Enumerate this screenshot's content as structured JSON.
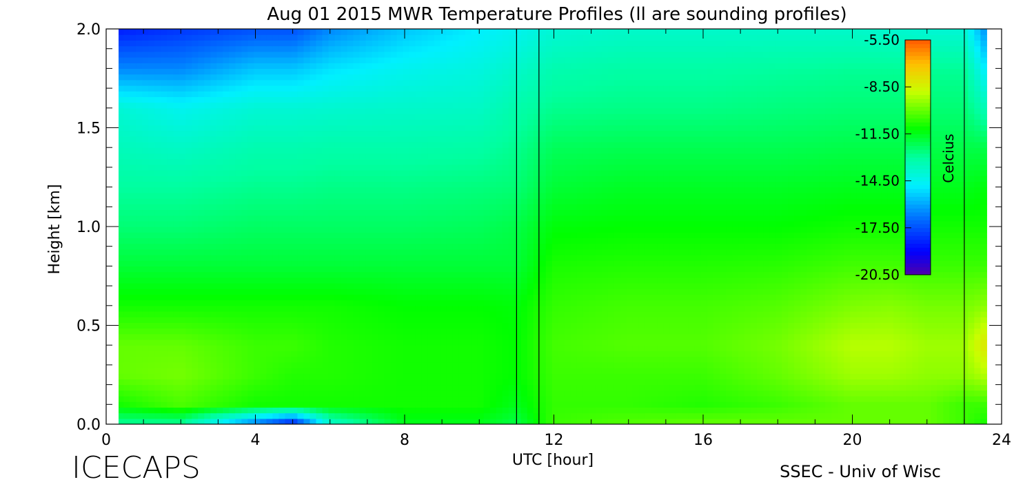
{
  "chart_data": {
    "type": "heatmap",
    "title": "Aug 01 2015 MWR Temperature Profiles (ll are sounding profiles)",
    "xlabel": "UTC [hour]",
    "ylabel": "Height [km]",
    "xlim": [
      0,
      24
    ],
    "ylim": [
      0,
      2.0
    ],
    "x_ticks": [
      "0",
      "4",
      "8",
      "12",
      "16",
      "20",
      "24"
    ],
    "y_ticks": [
      "0.0",
      "0.5",
      "1.0",
      "1.5",
      "2.0"
    ],
    "colorbar": {
      "label": "Celcius",
      "range": [
        -20.5,
        -5.5
      ],
      "tick_labels": [
        "-5.50",
        "-8.50",
        "-11.50",
        "-14.50",
        "-17.50",
        "-20.50"
      ],
      "tick_values": [
        -5.5,
        -8.5,
        -11.5,
        -14.5,
        -17.5,
        -20.5
      ],
      "colormap": "rainbow"
    },
    "sounding_marks_hour": [
      11.0,
      11.6,
      23.0
    ],
    "heights_km": [
      0.0,
      0.1,
      0.25,
      0.4,
      0.6,
      0.8,
      1.0,
      1.2,
      1.4,
      1.6,
      1.8,
      2.0
    ],
    "hours": [
      0.3,
      2,
      4,
      5,
      6,
      8,
      10,
      11,
      12,
      14,
      16,
      18,
      20,
      21,
      22,
      23,
      23.6
    ],
    "values_celsius": [
      [
        -13.0,
        -11.0,
        -10.0,
        -10.0,
        -11.0,
        -11.8,
        -12.5,
        -13.0,
        -13.5,
        -14.0,
        -16.5,
        -18.5
      ],
      [
        -13.0,
        -10.3,
        -9.8,
        -10.0,
        -11.0,
        -11.8,
        -12.5,
        -13.0,
        -13.7,
        -14.5,
        -16.5,
        -18.0
      ],
      [
        -17.0,
        -11.0,
        -10.5,
        -10.5,
        -11.0,
        -11.8,
        -12.3,
        -12.8,
        -13.3,
        -14.0,
        -15.5,
        -17.5
      ],
      [
        -19.0,
        -11.0,
        -10.8,
        -10.5,
        -11.0,
        -11.8,
        -12.3,
        -12.8,
        -13.3,
        -14.0,
        -15.5,
        -17.5
      ],
      [
        -14.0,
        -11.0,
        -10.8,
        -10.8,
        -11.0,
        -11.8,
        -12.3,
        -12.7,
        -13.2,
        -13.9,
        -15.0,
        -16.5
      ],
      [
        -11.5,
        -11.0,
        -11.0,
        -11.0,
        -11.2,
        -11.8,
        -12.3,
        -12.7,
        -13.2,
        -13.8,
        -14.5,
        -15.5
      ],
      [
        -11.5,
        -11.0,
        -11.0,
        -11.0,
        -11.2,
        -11.8,
        -12.2,
        -12.6,
        -13.1,
        -13.7,
        -14.2,
        -14.8
      ],
      [
        -12.0,
        -11.5,
        -11.2,
        -11.2,
        -11.3,
        -11.8,
        -12.0,
        -12.5,
        -12.8,
        -13.2,
        -13.8,
        -14.5
      ],
      [
        -10.5,
        -10.6,
        -10.5,
        -10.4,
        -10.6,
        -10.9,
        -11.3,
        -11.8,
        -12.2,
        -12.8,
        -13.3,
        -14.0
      ],
      [
        -10.2,
        -10.6,
        -10.5,
        -10.2,
        -10.4,
        -10.8,
        -11.2,
        -11.6,
        -12.1,
        -12.7,
        -13.1,
        -13.8
      ],
      [
        -10.0,
        -10.8,
        -10.5,
        -10.2,
        -10.4,
        -10.8,
        -11.2,
        -11.6,
        -12.1,
        -12.7,
        -13.1,
        -13.8
      ],
      [
        -10.0,
        -10.5,
        -10.0,
        -9.8,
        -10.2,
        -10.7,
        -11.2,
        -11.6,
        -12.1,
        -12.6,
        -13.0,
        -13.8
      ],
      [
        -10.0,
        -10.0,
        -9.3,
        -9.0,
        -9.7,
        -10.4,
        -11.0,
        -11.5,
        -12.0,
        -12.5,
        -12.9,
        -13.8
      ],
      [
        -10.0,
        -10.0,
        -9.3,
        -9.0,
        -9.6,
        -10.4,
        -11.0,
        -11.5,
        -12.0,
        -12.5,
        -12.9,
        -13.9
      ],
      [
        -10.0,
        -10.0,
        -9.5,
        -9.3,
        -9.8,
        -10.5,
        -11.0,
        -11.5,
        -12.0,
        -12.5,
        -12.9,
        -14.0
      ],
      [
        -10.5,
        -10.5,
        -9.5,
        -9.3,
        -9.8,
        -10.5,
        -11.0,
        -11.5,
        -12.0,
        -12.5,
        -12.9,
        -14.0
      ],
      [
        -11.0,
        -10.5,
        -9.0,
        -8.0,
        -9.5,
        -10.5,
        -11.0,
        -11.3,
        -12.0,
        -13.5,
        -15.0,
        -16.5
      ]
    ],
    "grid": false,
    "legend": "colorbar inside top-right"
  },
  "footer": {
    "project": "ICECAPS",
    "credit": "SSEC - Univ of Wisc"
  }
}
